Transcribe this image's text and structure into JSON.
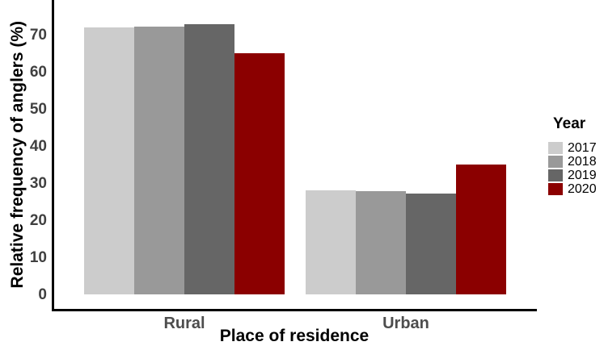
{
  "chart_data": {
    "type": "bar",
    "title": "",
    "xlabel": "Place of residence",
    "ylabel": "Relative frequency of anglers (%)",
    "legend_title": "Year",
    "legend_position": "right",
    "grid": false,
    "categories": [
      "Rural",
      "Urban"
    ],
    "series": [
      {
        "name": "2017",
        "color": "#CCCCCC",
        "values": [
          71.9,
          28.1
        ]
      },
      {
        "name": "2018",
        "color": "#999999",
        "values": [
          72.2,
          27.8
        ]
      },
      {
        "name": "2019",
        "color": "#666666",
        "values": [
          72.8,
          27.2
        ]
      },
      {
        "name": "2020",
        "color": "#8B0000",
        "values": [
          65.0,
          35.0
        ]
      }
    ],
    "y_ticks": [
      0,
      10,
      20,
      30,
      40,
      50,
      60,
      70
    ],
    "ylim": [
      0,
      77
    ],
    "axis_color": "#000000",
    "tick_label_color": "#404040",
    "category_label_color": "#4D4D4D"
  }
}
